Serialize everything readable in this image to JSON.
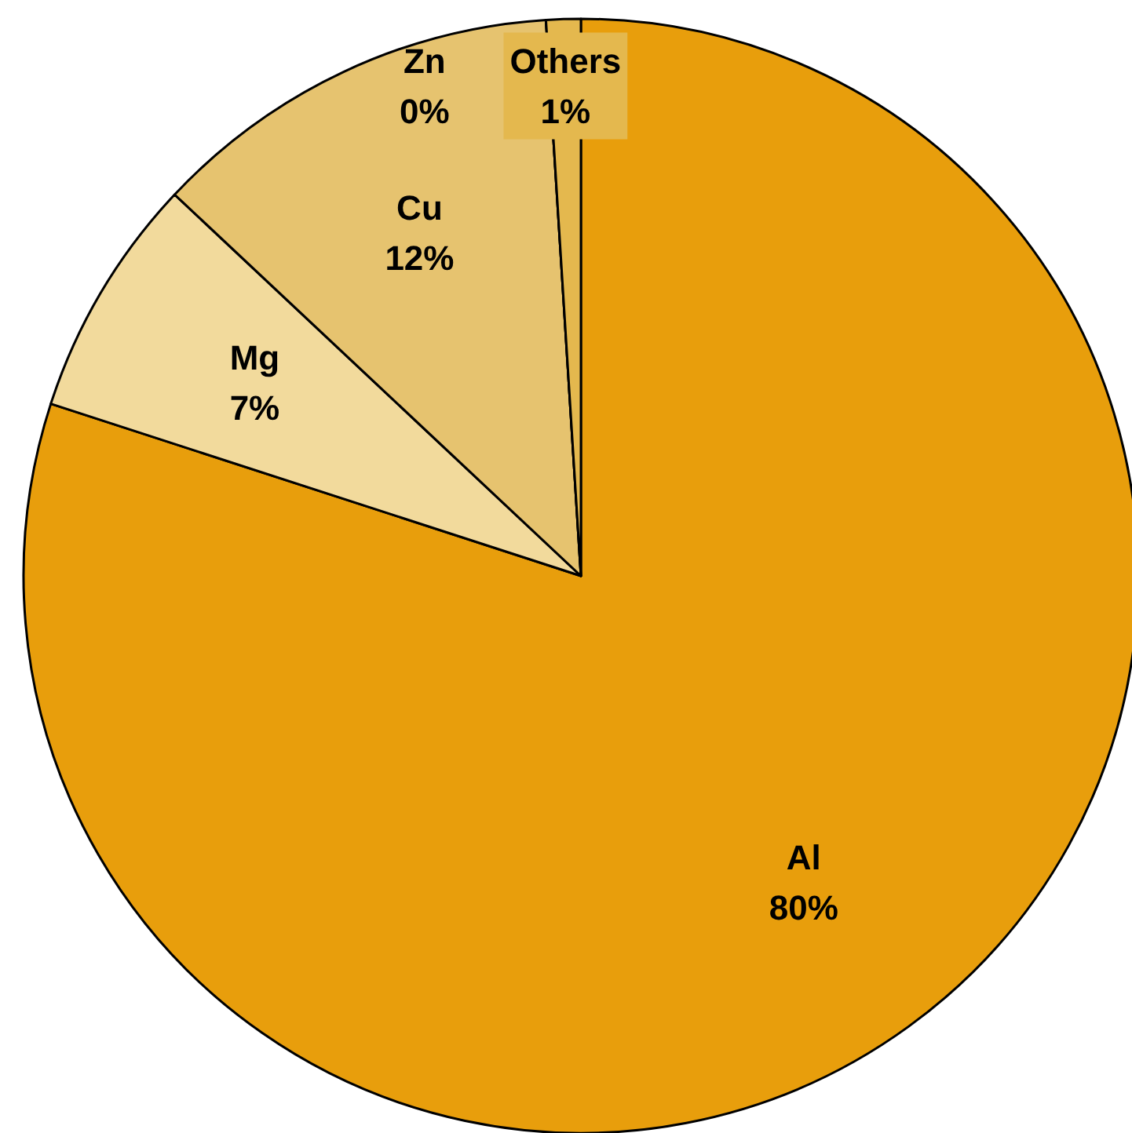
{
  "chart_data": {
    "type": "pie",
    "categories": [
      "Al",
      "Mg",
      "Cu",
      "Zn",
      "Others"
    ],
    "values": [
      80,
      7,
      12,
      0,
      1
    ],
    "value_labels": [
      "80%",
      "7%",
      "12%",
      "0%",
      "1%"
    ],
    "colors": [
      "#e89e0c",
      "#f2da9c",
      "#e6c36f",
      "#e0b04a",
      "#e4b84e"
    ],
    "legend": false
  }
}
